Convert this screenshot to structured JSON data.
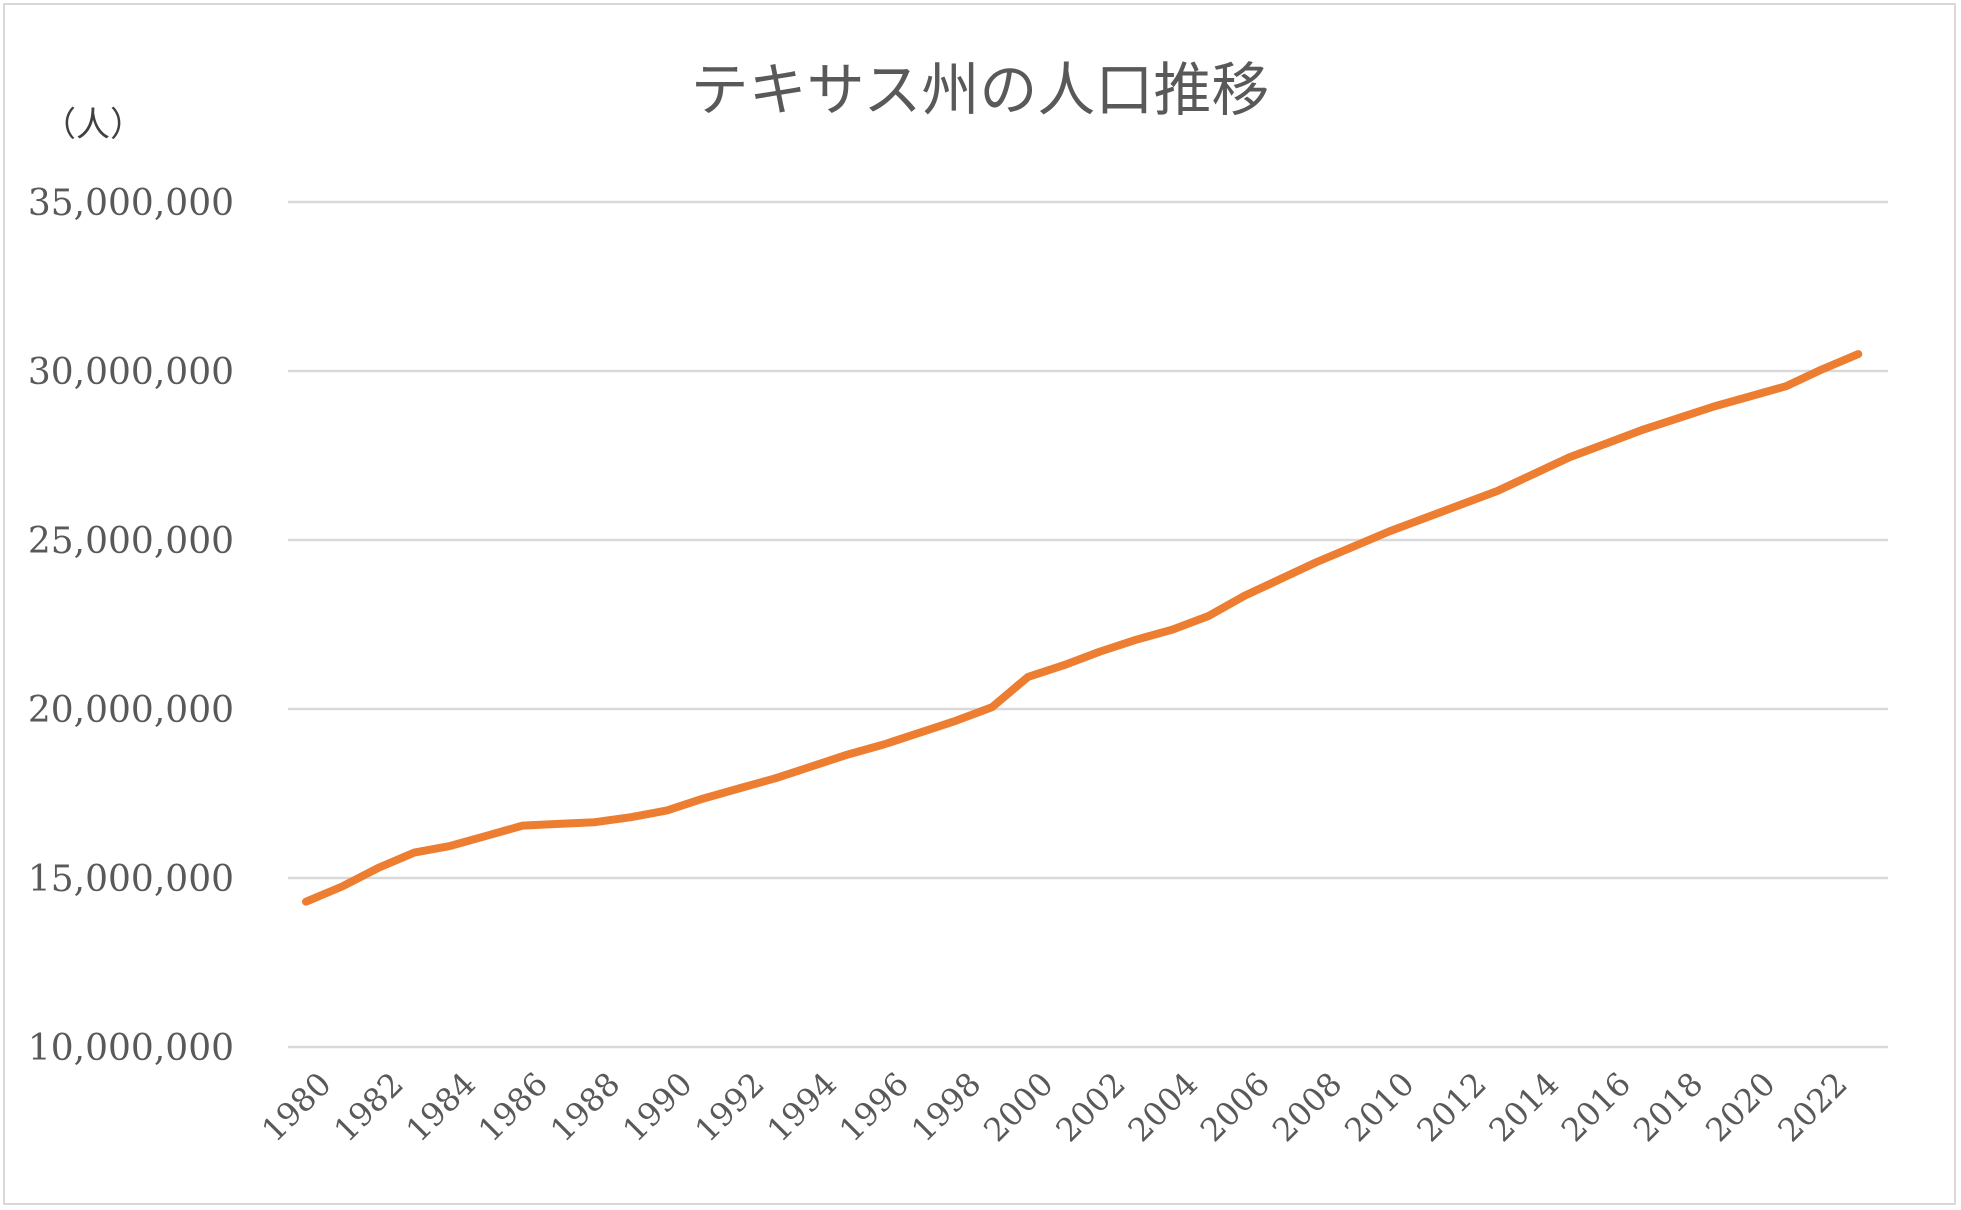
{
  "chart_data": {
    "type": "line",
    "title": "テキサス州の人口推移",
    "ylabel": "（人）",
    "xlabel": "",
    "ylim": [
      10000000,
      35000000
    ],
    "yticks": [
      10000000,
      15000000,
      20000000,
      25000000,
      30000000,
      35000000
    ],
    "ytick_labels": [
      "10,000,000",
      "15,000,000",
      "20,000,000",
      "25,000,000",
      "30,000,000",
      "35,000,000"
    ],
    "xtick_labels": [
      "1980",
      "1982",
      "1984",
      "1986",
      "1988",
      "1990",
      "1992",
      "1994",
      "1996",
      "1998",
      "2000",
      "2002",
      "2004",
      "2006",
      "2008",
      "2010",
      "2012",
      "2014",
      "2016",
      "2018",
      "2020",
      "2022"
    ],
    "grid": true,
    "legend": "none",
    "line_color": "#ed7d31",
    "x": [
      1980,
      1981,
      1982,
      1983,
      1984,
      1985,
      1986,
      1987,
      1988,
      1989,
      1990,
      1991,
      1992,
      1993,
      1994,
      1995,
      1996,
      1997,
      1998,
      1999,
      2000,
      2001,
      2002,
      2003,
      2004,
      2005,
      2006,
      2007,
      2008,
      2009,
      2010,
      2011,
      2012,
      2013,
      2014,
      2015,
      2016,
      2017,
      2018,
      2019,
      2020,
      2021,
      2022,
      2023
    ],
    "series": [
      {
        "values": [
          14300000,
          14750000,
          15300000,
          15750000,
          15950000,
          16250000,
          16550000,
          16600000,
          16650000,
          16800000,
          17000000,
          17350000,
          17650000,
          17950000,
          18300000,
          18650000,
          18950000,
          19300000,
          19650000,
          20050000,
          20950000,
          21300000,
          21700000,
          22050000,
          22350000,
          22750000,
          23350000,
          23850000,
          24350000,
          24800000,
          25250000,
          25650000,
          26050000,
          26450000,
          26950000,
          27450000,
          27850000,
          28250000,
          28600000,
          28950000,
          29250000,
          29550000,
          30050000,
          30500000
        ]
      }
    ]
  }
}
